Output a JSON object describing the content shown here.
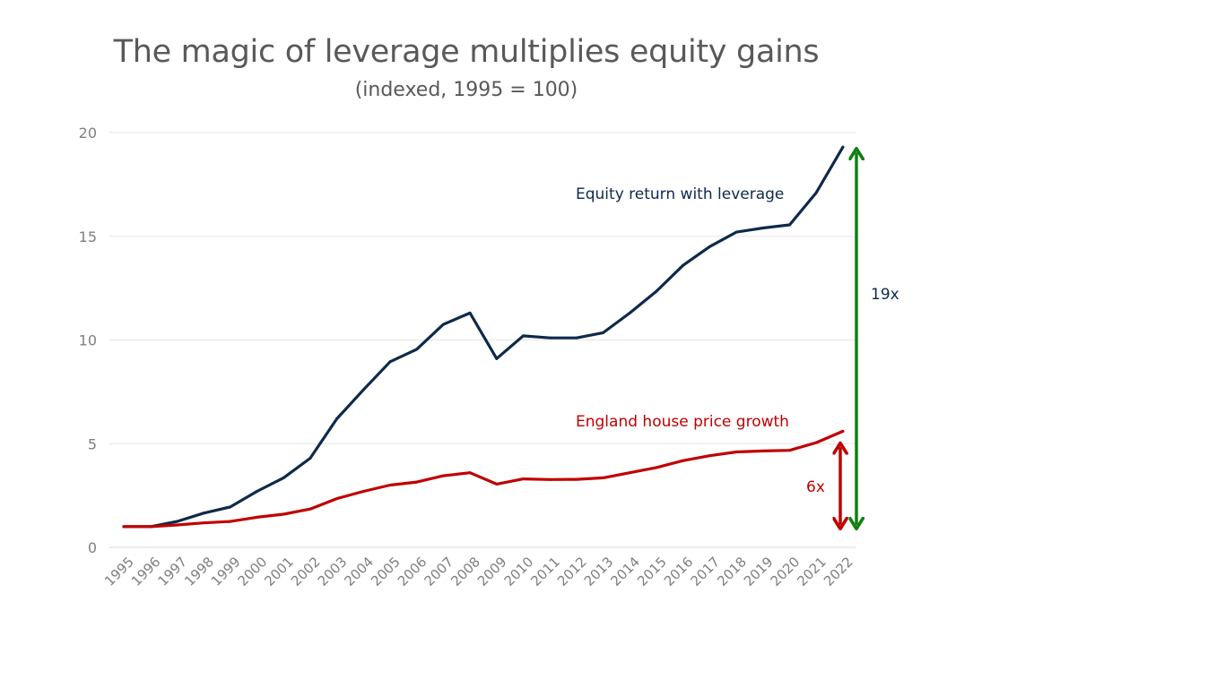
{
  "chart_data": {
    "type": "line",
    "title": "The magic of leverage multiplies equity gains",
    "subtitle": "(indexed, 1995 = 100)",
    "xlabel": "",
    "ylabel": "",
    "ylim": [
      0,
      20
    ],
    "yticks": [
      0,
      5,
      10,
      15,
      20
    ],
    "grid": true,
    "categories": [
      "1995",
      "1996",
      "1997",
      "1998",
      "1999",
      "2000",
      "2001",
      "2002",
      "2003",
      "2004",
      "2005",
      "2006",
      "2007",
      "2008",
      "2009",
      "2010",
      "2011",
      "2012",
      "2013",
      "2014",
      "2015",
      "2016",
      "2017",
      "2018",
      "2019",
      "2020",
      "2021",
      "2022"
    ],
    "series": [
      {
        "name": "Equity return with leverage",
        "color": "#0e2a4a",
        "values": [
          1.0,
          1.0,
          1.25,
          1.65,
          1.95,
          2.7,
          3.35,
          4.3,
          6.2,
          7.6,
          8.95,
          9.55,
          10.75,
          11.3,
          9.1,
          10.2,
          10.1,
          10.1,
          10.35,
          11.3,
          12.35,
          13.6,
          14.5,
          15.2,
          15.4,
          15.55,
          17.1,
          19.3
        ]
      },
      {
        "name": "England house price growth",
        "color": "#c00000",
        "values": [
          1.0,
          1.0,
          1.08,
          1.18,
          1.25,
          1.45,
          1.6,
          1.85,
          2.35,
          2.7,
          3.0,
          3.15,
          3.45,
          3.6,
          3.05,
          3.3,
          3.27,
          3.28,
          3.35,
          3.6,
          3.85,
          4.18,
          4.42,
          4.6,
          4.65,
          4.68,
          5.05,
          5.6
        ]
      }
    ],
    "annotations": [
      {
        "text": "19x",
        "color": "#0e2a4a",
        "arrow_color": "#108010",
        "from": 1.0,
        "to": 19.3
      },
      {
        "text": "6x",
        "color": "#c00000",
        "arrow_color": "#c00000",
        "from": 1.0,
        "to": 5.1
      }
    ]
  }
}
